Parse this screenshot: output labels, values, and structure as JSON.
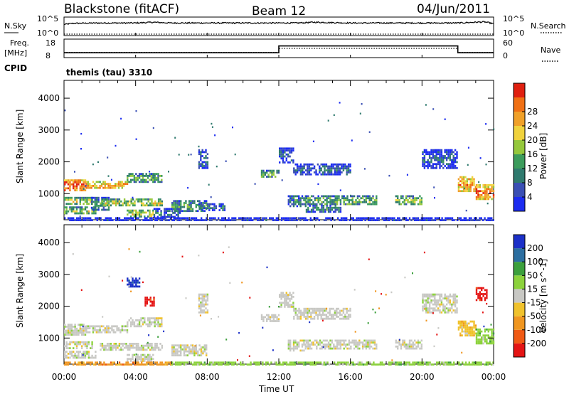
{
  "header": {
    "station": "Blackstone (fitACF)",
    "beam": "Beam 12",
    "date": "04/Jun/2011"
  },
  "side_labels": {
    "nsky": "N.Sky",
    "nsearch": "N.Search",
    "freq": "Freq.",
    "freq_unit": "[MHz]",
    "nave": "Nave",
    "cpid": "CPID",
    "nsky_hi": "10^5",
    "nsky_lo": "10^0",
    "nsearch_hi": "10^5",
    "nsearch_lo": "10^0",
    "freq_hi": "18",
    "freq_lo": "8",
    "nave_hi": "60",
    "nave_lo": "0"
  },
  "cpid_text": "themis (tau) 3310",
  "colors": {
    "power": [
      "#1c2cf0",
      "#3a4fb4",
      "#2f7a6e",
      "#3c9c5c",
      "#95c83c",
      "#f0d23c",
      "#f0a028",
      "#f07014",
      "#e02010"
    ],
    "velocity": [
      "#e41414",
      "#f05a14",
      "#f09620",
      "#f0c22c",
      "#c8c8c4",
      "#8cd23c",
      "#3ca03c",
      "#2c6ea0",
      "#1c30c8"
    ]
  },
  "chart_data": [
    {
      "type": "line",
      "title": "N.Sky / N.Search",
      "x_unit": "hours UT",
      "xlim": [
        0,
        24
      ],
      "ylim_log10": [
        0,
        5
      ],
      "series": [
        {
          "name": "N.Sky",
          "x": [
            0,
            0.5,
            2,
            4,
            5,
            6,
            8,
            10,
            12,
            13,
            14,
            16,
            18,
            20,
            22,
            23,
            23.5,
            24
          ],
          "values": [
            3.0,
            3.3,
            3.4,
            3.4,
            3.6,
            3.4,
            3.4,
            3.4,
            3.4,
            3.4,
            3.6,
            3.4,
            3.4,
            3.4,
            3.4,
            3.6,
            3.7,
            3.2
          ]
        }
      ]
    },
    {
      "type": "line",
      "title": "Freq. / Nave",
      "xlim": [
        0,
        24
      ],
      "ylim_freq": [
        8,
        18
      ],
      "ylim_nave": [
        0,
        60
      ],
      "series": [
        {
          "name": "Freq.",
          "x": [
            0,
            12,
            12,
            22,
            22,
            24
          ],
          "values": [
            10.6,
            10.6,
            14.3,
            14.3,
            10.6,
            10.6
          ]
        },
        {
          "name": "Nave",
          "x": [
            0,
            12,
            12,
            22,
            22,
            24
          ],
          "values": [
            17,
            17,
            30,
            30,
            17,
            17
          ]
        }
      ]
    },
    {
      "type": "heatmap",
      "title": "Power",
      "ylabel": "Slant Range [km]",
      "colorbar_label": "Power [dB]",
      "colorbar_ticks": [
        4,
        8,
        12,
        16,
        20,
        24,
        28
      ],
      "yticks": [
        1000,
        2000,
        3000,
        4000
      ],
      "xlim": [
        0,
        24
      ],
      "ylim": [
        180,
        4560
      ],
      "echo_bands": [
        {
          "t0": 0.0,
          "t1": 1.2,
          "r0": 1100,
          "r1": 1450,
          "level": 7.5
        },
        {
          "t0": 1.2,
          "t1": 3.5,
          "r0": 1150,
          "r1": 1400,
          "level": 6.5
        },
        {
          "t0": 3.5,
          "t1": 5.5,
          "r0": 1350,
          "r1": 1650,
          "level": 3.5
        },
        {
          "t0": 0.0,
          "t1": 1.6,
          "r0": 650,
          "r1": 900,
          "level": 4.5
        },
        {
          "t0": 0.0,
          "t1": 1.8,
          "r0": 350,
          "r1": 600,
          "level": 4.0
        },
        {
          "t0": 1.5,
          "t1": 2.5,
          "r0": 500,
          "r1": 900,
          "level": 2.5
        },
        {
          "t0": 2.0,
          "t1": 5.5,
          "r0": 600,
          "r1": 850,
          "level": 4.5
        },
        {
          "t0": 3.5,
          "t1": 5.0,
          "r0": 300,
          "r1": 500,
          "level": 5.0
        },
        {
          "t0": 5.0,
          "t1": 6.5,
          "r0": 250,
          "r1": 550,
          "level": 2.0
        },
        {
          "t0": 6.0,
          "t1": 8.0,
          "r0": 450,
          "r1": 800,
          "level": 3.0
        },
        {
          "t0": 7.5,
          "t1": 9.0,
          "r0": 500,
          "r1": 700,
          "level": 2.0
        },
        {
          "t0": 7.5,
          "t1": 8.0,
          "r0": 1800,
          "r1": 2400,
          "level": 1.5
        },
        {
          "t0": 11.0,
          "t1": 12.0,
          "r0": 1500,
          "r1": 1750,
          "level": 3.0
        },
        {
          "t0": 12.0,
          "t1": 12.8,
          "r0": 2000,
          "r1": 2450,
          "level": 1.5
        },
        {
          "t0": 12.8,
          "t1": 16.0,
          "r0": 1600,
          "r1": 1950,
          "level": 1.5
        },
        {
          "t0": 12.5,
          "t1": 13.5,
          "r0": 600,
          "r1": 950,
          "level": 2.5
        },
        {
          "t0": 13.5,
          "t1": 17.5,
          "r0": 650,
          "r1": 950,
          "level": 3.5
        },
        {
          "t0": 13.5,
          "t1": 15.5,
          "r0": 450,
          "r1": 650,
          "level": 2.5
        },
        {
          "t0": 18.5,
          "t1": 20.0,
          "r0": 650,
          "r1": 950,
          "level": 4.0
        },
        {
          "t0": 20.0,
          "t1": 22.0,
          "r0": 1800,
          "r1": 2400,
          "level": 1.5
        },
        {
          "t0": 22.0,
          "t1": 23.0,
          "r0": 1100,
          "r1": 1550,
          "level": 6.5
        },
        {
          "t0": 23.0,
          "t1": 24.0,
          "r0": 800,
          "r1": 1300,
          "level": 7.0
        },
        {
          "t0": 0.0,
          "t1": 24.0,
          "r0": 180,
          "r1": 260,
          "level": 1.0
        }
      ]
    },
    {
      "type": "heatmap",
      "title": "Velocity",
      "ylabel": "Slant Range [km]",
      "xlabel": "Time UT",
      "colorbar_label": "Velocity [m s^-1]",
      "colorbar_ticks": [
        200,
        100,
        50,
        15,
        -15,
        -50,
        -100,
        -200
      ],
      "yticks": [
        1000,
        2000,
        3000,
        4000
      ],
      "xticks": [
        "00:00",
        "04:00",
        "08:00",
        "12:00",
        "16:00",
        "20:00",
        "00:00"
      ],
      "xlim": [
        0,
        24
      ],
      "ylim": [
        180,
        4560
      ],
      "echo_bands": [
        {
          "t0": 0.0,
          "t1": 1.2,
          "r0": 1100,
          "r1": 1450,
          "level": 4
        },
        {
          "t0": 1.2,
          "t1": 3.5,
          "r0": 1150,
          "r1": 1400,
          "level": 4
        },
        {
          "t0": 3.5,
          "t1": 5.5,
          "r0": 1350,
          "r1": 1650,
          "level": 4
        },
        {
          "t0": 0.0,
          "t1": 1.6,
          "r0": 650,
          "r1": 900,
          "level": 4
        },
        {
          "t0": 0.0,
          "t1": 1.8,
          "r0": 350,
          "r1": 600,
          "level": 4
        },
        {
          "t0": 2.0,
          "t1": 5.5,
          "r0": 600,
          "r1": 850,
          "level": 4
        },
        {
          "t0": 3.5,
          "t1": 5.0,
          "r0": 300,
          "r1": 500,
          "level": 4
        },
        {
          "t0": 6.0,
          "t1": 8.0,
          "r0": 450,
          "r1": 800,
          "level": 4
        },
        {
          "t0": 7.5,
          "t1": 8.0,
          "r0": 1800,
          "r1": 2400,
          "level": 4
        },
        {
          "t0": 11.0,
          "t1": 12.0,
          "r0": 1500,
          "r1": 1750,
          "level": 4
        },
        {
          "t0": 12.0,
          "t1": 12.8,
          "r0": 2000,
          "r1": 2450,
          "level": 4
        },
        {
          "t0": 12.8,
          "t1": 16.0,
          "r0": 1600,
          "r1": 1950,
          "level": 4
        },
        {
          "t0": 12.5,
          "t1": 13.5,
          "r0": 600,
          "r1": 950,
          "level": 4
        },
        {
          "t0": 13.5,
          "t1": 17.5,
          "r0": 650,
          "r1": 950,
          "level": 4
        },
        {
          "t0": 18.5,
          "t1": 20.0,
          "r0": 650,
          "r1": 950,
          "level": 4
        },
        {
          "t0": 20.0,
          "t1": 22.0,
          "r0": 1800,
          "r1": 2400,
          "level": 4
        },
        {
          "t0": 22.0,
          "t1": 23.0,
          "r0": 1100,
          "r1": 1550,
          "level": 3
        },
        {
          "t0": 23.0,
          "t1": 24.0,
          "r0": 800,
          "r1": 1300,
          "level": 5
        },
        {
          "t0": 3.5,
          "t1": 4.2,
          "r0": 2600,
          "r1": 2900,
          "level": 8
        },
        {
          "t0": 4.5,
          "t1": 5.0,
          "r0": 2000,
          "r1": 2300,
          "level": 0
        },
        {
          "t0": 23.0,
          "t1": 23.6,
          "r0": 2200,
          "r1": 2600,
          "level": 0
        },
        {
          "t0": 0.0,
          "t1": 6.0,
          "r0": 180,
          "r1": 260,
          "level": 2
        },
        {
          "t0": 6.0,
          "t1": 24.0,
          "r0": 180,
          "r1": 260,
          "level": 5
        }
      ]
    }
  ]
}
